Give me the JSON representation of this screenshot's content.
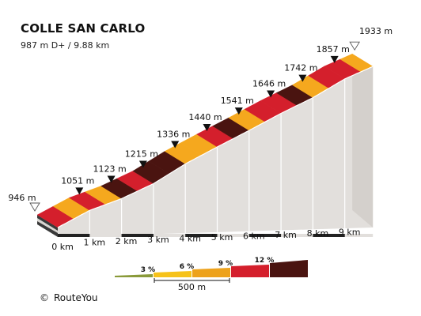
{
  "title": "COLLE SAN CARLO",
  "subtitle": "987 m D+ / 9.88 km",
  "credit": {
    "symbol": "©",
    "text": "RouteYou"
  },
  "chart_data": {
    "type": "area",
    "title": "COLLE SAN CARLO",
    "subtitle": "987 m D+ / 9.88 km",
    "x_unit": "km",
    "y_unit": "m",
    "x_ticks": [
      "0 km",
      "1 km",
      "2 km",
      "3 km",
      "4 km",
      "5 km",
      "6 km",
      "7 km",
      "8 km",
      "9 km"
    ],
    "km_markers": [
      {
        "km": 0,
        "elevation": 946,
        "label": "946 m",
        "marker": "start"
      },
      {
        "km": 1,
        "elevation": 1051,
        "label": "1051 m",
        "marker": "km"
      },
      {
        "km": 2,
        "elevation": 1123,
        "label": "1123 m",
        "marker": "km"
      },
      {
        "km": 3,
        "elevation": 1215,
        "label": "1215 m",
        "marker": "km"
      },
      {
        "km": 4,
        "elevation": 1336,
        "label": "1336 m",
        "marker": "km"
      },
      {
        "km": 5,
        "elevation": 1440,
        "label": "1440 m",
        "marker": "km"
      },
      {
        "km": 6,
        "elevation": 1541,
        "label": "1541 m",
        "marker": "km"
      },
      {
        "km": 7,
        "elevation": 1646,
        "label": "1646 m",
        "marker": "km"
      },
      {
        "km": 8,
        "elevation": 1742,
        "label": "1742 m",
        "marker": "km"
      },
      {
        "km": 9,
        "elevation": 1857,
        "label": "1857 m",
        "marker": "km"
      },
      {
        "km": 9.88,
        "elevation": 1933,
        "label": "1933 m",
        "marker": "end"
      }
    ],
    "segments": [
      {
        "from_km": 0,
        "to_km": 0.5,
        "grade_class": 9
      },
      {
        "from_km": 0.5,
        "to_km": 1.0,
        "grade_class": 6
      },
      {
        "from_km": 1.0,
        "to_km": 1.5,
        "grade_class": 9
      },
      {
        "from_km": 1.5,
        "to_km": 2.0,
        "grade_class": 6
      },
      {
        "from_km": 2.0,
        "to_km": 2.5,
        "grade_class": 12
      },
      {
        "from_km": 2.5,
        "to_km": 3.0,
        "grade_class": 9
      },
      {
        "from_km": 3.0,
        "to_km": 3.5,
        "grade_class": 12
      },
      {
        "from_km": 3.5,
        "to_km": 4.0,
        "grade_class": 12
      },
      {
        "from_km": 4.0,
        "to_km": 4.5,
        "grade_class": 6
      },
      {
        "from_km": 4.5,
        "to_km": 5.0,
        "grade_class": 6
      },
      {
        "from_km": 5.0,
        "to_km": 5.5,
        "grade_class": 9
      },
      {
        "from_km": 5.5,
        "to_km": 6.0,
        "grade_class": 12
      },
      {
        "from_km": 6.0,
        "to_km": 6.5,
        "grade_class": 6
      },
      {
        "from_km": 6.5,
        "to_km": 7.0,
        "grade_class": 9
      },
      {
        "from_km": 7.0,
        "to_km": 7.5,
        "grade_class": 9
      },
      {
        "from_km": 7.5,
        "to_km": 8.0,
        "grade_class": 12
      },
      {
        "from_km": 8.0,
        "to_km": 8.5,
        "grade_class": 6
      },
      {
        "from_km": 8.5,
        "to_km": 9.0,
        "grade_class": 9
      },
      {
        "from_km": 9.0,
        "to_km": 9.5,
        "grade_class": 9
      },
      {
        "from_km": 9.5,
        "to_km": 9.88,
        "grade_class": 6
      }
    ],
    "legend": {
      "items": [
        {
          "label": "3 %",
          "grade": 3,
          "color": "#8a9a3a"
        },
        {
          "label": "6 %",
          "grade": 6,
          "color": "#f6c21a"
        },
        {
          "label": "9 %",
          "grade": 9,
          "color": "#eda21c"
        },
        {
          "label": "12 %",
          "grade": 12,
          "color": "#d41f2c"
        },
        {
          "label": "",
          "grade": 15,
          "color": "#4a1410"
        }
      ],
      "scale_label": "500 m"
    },
    "colors": {
      "6": "#f5a81e",
      "9": "#d41f2c",
      "12": "#4a1410",
      "wall": "#e2dfdc",
      "wall_top_edge": "#ffffff",
      "base": "#222222"
    }
  }
}
